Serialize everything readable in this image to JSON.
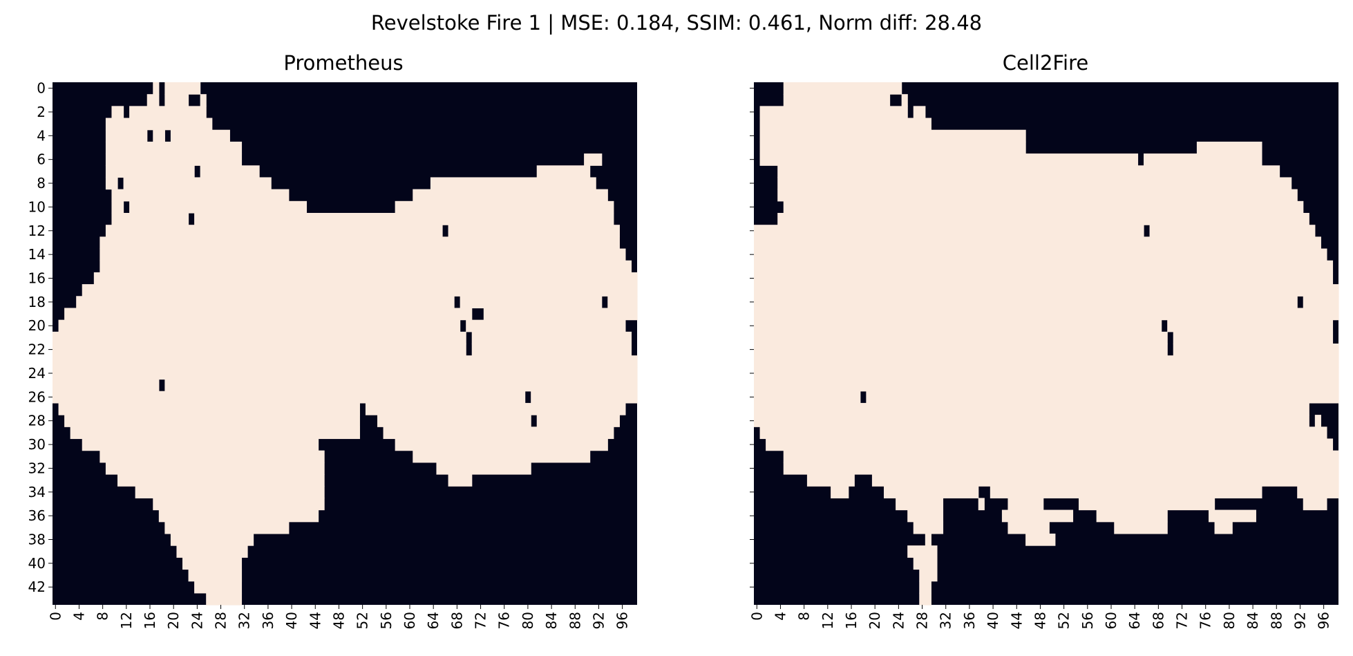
{
  "chart_data": {
    "type": "heatmap",
    "title": "Revelstoke Fire 1 | MSE: 0.184, SSIM: 0.461, Norm diff: 28.48",
    "colors": {
      "burned": "#faeade",
      "unburned": "#03051a"
    },
    "grid": {
      "rows": 44,
      "cols": 99
    },
    "x_ticks": [
      "0",
      "4",
      "8",
      "12",
      "16",
      "20",
      "24",
      "28",
      "32",
      "36",
      "40",
      "44",
      "48",
      "52",
      "56",
      "60",
      "64",
      "68",
      "72",
      "76",
      "80",
      "84",
      "88",
      "92",
      "96"
    ],
    "y_ticks": [
      "0",
      "2",
      "4",
      "6",
      "8",
      "10",
      "12",
      "14",
      "16",
      "18",
      "20",
      "22",
      "24",
      "26",
      "28",
      "30",
      "32",
      "34",
      "36",
      "38",
      "40",
      "42"
    ],
    "panels": [
      {
        "title": "Prometheus",
        "show_y_labels": true,
        "boundary_left": [
          0,
          0,
          0,
          0,
          0,
          0,
          0,
          0,
          0,
          0,
          0,
          0,
          0,
          0,
          0,
          0,
          0,
          0,
          0,
          0,
          0,
          0,
          0,
          0,
          0,
          0,
          0,
          0,
          0,
          0,
          0,
          0,
          0,
          0,
          0,
          0,
          0,
          0,
          0,
          0,
          0,
          0,
          0,
          0
        ],
        "boundary_right": [
          99,
          99,
          99,
          99,
          99,
          99,
          99,
          99,
          99,
          99,
          99,
          99,
          99,
          99,
          99,
          99,
          99,
          99,
          99,
          99,
          99,
          99,
          99,
          99,
          99,
          99,
          99,
          99,
          99,
          99,
          99,
          99,
          99,
          99,
          99,
          99,
          99,
          99,
          99,
          99,
          99,
          99,
          99,
          99
        ],
        "burned_runs": [
          [
            [
              17,
              17
            ],
            [
              19,
              24
            ]
          ],
          [
            [
              16,
              22
            ],
            [
              25,
              25
            ]
          ],
          [
            [
              10,
              18
            ],
            [
              19,
              25
            ]
          ],
          [
            [
              9,
              26
            ]
          ],
          [
            [
              9,
              29
            ]
          ],
          [
            [
              9,
              31
            ]
          ],
          [
            [
              9,
              31
            ],
            [
              90,
              92
            ]
          ],
          [
            [
              9,
              34
            ],
            [
              82,
              90
            ]
          ],
          [
            [
              9,
              36
            ],
            [
              64,
              91
            ]
          ],
          [
            [
              10,
              39
            ],
            [
              61,
              93
            ]
          ],
          [
            [
              10,
              42
            ],
            [
              58,
              94
            ]
          ],
          [
            [
              10,
              48
            ],
            [
              49,
              94
            ]
          ],
          [
            [
              9,
              95
            ]
          ],
          [
            [
              8,
              95
            ]
          ],
          [
            [
              8,
              96
            ]
          ],
          [
            [
              8,
              97
            ]
          ],
          [
            [
              7,
              98
            ]
          ],
          [
            [
              5,
              98
            ]
          ],
          [
            [
              4,
              99
            ]
          ],
          [
            [
              2,
              98
            ]
          ],
          [
            [
              1,
              96
            ]
          ],
          [
            [
              0,
              97
            ]
          ],
          [
            [
              0,
              97
            ]
          ],
          [
            [
              0,
              98
            ]
          ],
          [
            [
              0,
              98
            ]
          ],
          [
            [
              0,
              51
            ],
            [
              52,
              98
            ]
          ],
          [
            [
              0,
              51
            ],
            [
              52,
              98
            ]
          ],
          [
            [
              1,
              51
            ],
            [
              53,
              96
            ]
          ],
          [
            [
              2,
              51
            ],
            [
              55,
              95
            ]
          ],
          [
            [
              3,
              51
            ],
            [
              56,
              94
            ]
          ],
          [
            [
              5,
              44
            ],
            [
              58,
              93
            ]
          ],
          [
            [
              8,
              45
            ],
            [
              61,
              90
            ]
          ],
          [
            [
              9,
              45
            ],
            [
              65,
              80
            ]
          ],
          [
            [
              11,
              45
            ],
            [
              67,
              70
            ]
          ],
          [
            [
              14,
              45
            ]
          ],
          [
            [
              17,
              45
            ]
          ],
          [
            [
              18,
              44
            ]
          ],
          [
            [
              19,
              39
            ]
          ],
          [
            [
              20,
              33
            ]
          ],
          [
            [
              21,
              32
            ]
          ],
          [
            [
              22,
              31
            ]
          ],
          [
            [
              23,
              31
            ]
          ],
          [
            [
              24,
              31
            ]
          ],
          [
            [
              26,
              31
            ]
          ]
        ],
        "holes": [
          [
            1,
            18
          ],
          [
            2,
            12
          ],
          [
            4,
            16
          ],
          [
            4,
            19
          ],
          [
            7,
            24
          ],
          [
            8,
            11
          ],
          [
            10,
            12
          ],
          [
            11,
            23
          ],
          [
            12,
            66
          ],
          [
            18,
            68
          ],
          [
            18,
            93
          ],
          [
            19,
            71
          ],
          [
            19,
            72
          ],
          [
            20,
            69
          ],
          [
            21,
            70
          ],
          [
            22,
            70
          ],
          [
            25,
            18
          ],
          [
            26,
            80
          ],
          [
            28,
            81
          ]
        ]
      },
      {
        "title": "Cell2Fire",
        "show_y_labels": false,
        "burned_runs": [
          [
            [
              5,
              24
            ]
          ],
          [
            [
              5,
              22
            ],
            [
              25,
              25
            ]
          ],
          [
            [
              1,
              25
            ],
            [
              27,
              28
            ]
          ],
          [
            [
              1,
              29
            ]
          ],
          [
            [
              1,
              34
            ],
            [
              35,
              45
            ]
          ],
          [
            [
              1,
              45
            ],
            [
              75,
              85
            ]
          ],
          [
            [
              1,
              85
            ]
          ],
          [
            [
              4,
              88
            ]
          ],
          [
            [
              4,
              90
            ]
          ],
          [
            [
              4,
              91
            ]
          ],
          [
            [
              5,
              92
            ]
          ],
          [
            [
              4,
              93
            ]
          ],
          [
            [
              0,
              94
            ]
          ],
          [
            [
              0,
              95
            ]
          ],
          [
            [
              0,
              96
            ]
          ],
          [
            [
              0,
              97
            ]
          ],
          [
            [
              0,
              97
            ]
          ],
          [
            [
              0,
              98
            ]
          ],
          [
            [
              0,
              98
            ]
          ],
          [
            [
              0,
              98
            ]
          ],
          [
            [
              0,
              97
            ]
          ],
          [
            [
              0,
              97
            ]
          ],
          [
            [
              0,
              98
            ]
          ],
          [
            [
              0,
              98
            ]
          ],
          [
            [
              0,
              98
            ]
          ],
          [
            [
              0,
              98
            ]
          ],
          [
            [
              0,
              98
            ]
          ],
          [
            [
              0,
              94
            ]
          ],
          [
            [
              0,
              95
            ]
          ],
          [
            [
              1,
              96
            ]
          ],
          [
            [
              2,
              97
            ]
          ],
          [
            [
              5,
              98
            ]
          ],
          [
            [
              5,
              98
            ]
          ],
          [
            [
              9,
              16
            ],
            [
              20,
              98
            ]
          ],
          [
            [
              13,
              15
            ],
            [
              22,
              37
            ],
            [
              40,
              85
            ],
            [
              92,
              98
            ]
          ],
          [
            [
              24,
              31
            ],
            [
              38,
              38
            ],
            [
              43,
              48
            ],
            [
              55,
              77
            ],
            [
              93,
              96
            ]
          ],
          [
            [
              26,
              31
            ],
            [
              42,
              53
            ],
            [
              58,
              69
            ],
            [
              77,
              84
            ]
          ],
          [
            [
              27,
              31
            ],
            [
              43,
              49
            ],
            [
              61,
              69
            ],
            [
              78,
              80
            ]
          ],
          [
            [
              29,
              29
            ],
            [
              46,
              50
            ]
          ],
          [
            [
              26,
              30
            ]
          ],
          [
            [
              27,
              30
            ]
          ],
          [
            [
              28,
              30
            ]
          ],
          [
            [
              28,
              29
            ]
          ],
          [
            [
              28,
              29
            ]
          ]
        ],
        "holes": [
          [
            6,
            65
          ],
          [
            12,
            66
          ],
          [
            18,
            92
          ],
          [
            20,
            69
          ],
          [
            21,
            70
          ],
          [
            22,
            70
          ],
          [
            26,
            18
          ],
          [
            27,
            94
          ],
          [
            28,
            94
          ]
        ]
      }
    ]
  }
}
